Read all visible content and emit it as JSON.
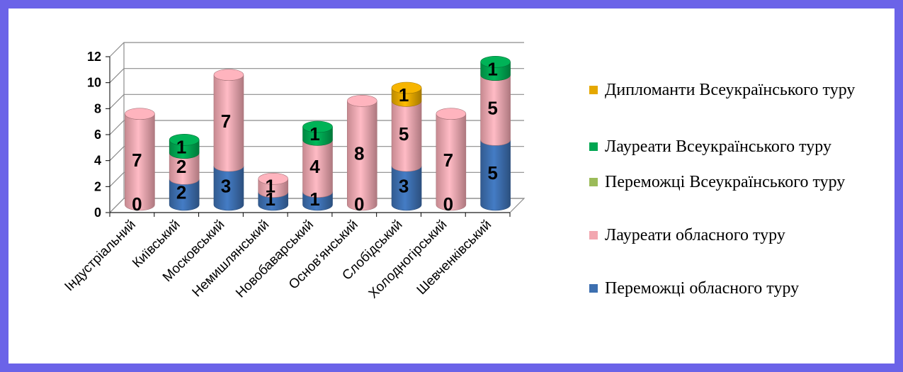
{
  "chart_data": {
    "type": "bar",
    "stacked": true,
    "style": "3d-cylinder",
    "categories": [
      "Індустріальний",
      "Київський",
      "Московський",
      "Немишлянський",
      "Новобаварський",
      "Основ'янський",
      "Слобідський",
      "Холодногірський",
      "Шевченківський"
    ],
    "series": [
      {
        "name": "Переможці обласного туру",
        "color": "#3d6fb0",
        "values": [
          0,
          2,
          3,
          1,
          1,
          0,
          3,
          0,
          5
        ]
      },
      {
        "name": "Лауреати обласного  туру",
        "color": "#f2a7b0",
        "values": [
          7,
          2,
          7,
          1,
          4,
          8,
          5,
          7,
          5
        ]
      },
      {
        "name": "Переможці Всеукраїнського туру",
        "color": "#9bbb59",
        "values": [
          0,
          0,
          0,
          0,
          0,
          0,
          0,
          0,
          0
        ]
      },
      {
        "name": "Лауреати Всеукраїнського туру",
        "color": "#00a651",
        "values": [
          0,
          1,
          0,
          0,
          1,
          0,
          0,
          0,
          1
        ]
      },
      {
        "name": "Дипломанти Всеукраїнського туру",
        "color": "#e5a800",
        "values": [
          0,
          0,
          0,
          0,
          0,
          0,
          1,
          0,
          0
        ]
      }
    ],
    "data_labels": [
      {
        "category": 0,
        "series": 0,
        "text": "0"
      },
      {
        "category": 0,
        "series": 1,
        "text": "7"
      },
      {
        "category": 1,
        "series": 0,
        "text": "2"
      },
      {
        "category": 1,
        "series": 1,
        "text": "2"
      },
      {
        "category": 1,
        "series": 3,
        "text": "1"
      },
      {
        "category": 2,
        "series": 0,
        "text": "3"
      },
      {
        "category": 2,
        "series": 1,
        "text": "7"
      },
      {
        "category": 3,
        "series": 0,
        "text": "1"
      },
      {
        "category": 3,
        "series": 1,
        "text": "1"
      },
      {
        "category": 4,
        "series": 0,
        "text": "1"
      },
      {
        "category": 4,
        "series": 1,
        "text": "4"
      },
      {
        "category": 4,
        "series": 3,
        "text": "1"
      },
      {
        "category": 5,
        "series": 0,
        "text": "0"
      },
      {
        "category": 5,
        "series": 1,
        "text": "8"
      },
      {
        "category": 6,
        "series": 0,
        "text": "3"
      },
      {
        "category": 6,
        "series": 1,
        "text": "5"
      },
      {
        "category": 6,
        "series": 4,
        "text": "1"
      },
      {
        "category": 7,
        "series": 0,
        "text": "0"
      },
      {
        "category": 7,
        "series": 1,
        "text": "7"
      },
      {
        "category": 8,
        "series": 0,
        "text": "5"
      },
      {
        "category": 8,
        "series": 1,
        "text": "5"
      },
      {
        "category": 8,
        "series": 3,
        "text": "1"
      }
    ],
    "ylim": [
      0,
      12
    ],
    "yticks": [
      "0",
      "2",
      "4",
      "6",
      "8",
      "10",
      "12"
    ],
    "grid": true,
    "legend_position": "right",
    "legend_order": [
      "Дипломанти Всеукраїнського туру",
      "Лауреати Всеукраїнського туру",
      "Переможці Всеукраїнського туру",
      "Лауреати обласного  туру",
      "Переможці обласного туру"
    ],
    "title": "",
    "xlabel": "",
    "ylabel": ""
  },
  "legend": {
    "items": [
      {
        "label": "Дипломанти Всеукраїнського туру",
        "color": "#e5a800"
      },
      {
        "label": "Лауреати Всеукраїнського туру",
        "color": "#00a651"
      },
      {
        "label": "Переможці Всеукраїнського туру",
        "color": "#9bbb59"
      },
      {
        "label": "Лауреати обласного  туру",
        "color": "#f2a7b0"
      },
      {
        "label": "Переможці обласного туру",
        "color": "#3d6fb0"
      }
    ]
  },
  "colors": {
    "frame": "#6b63e8",
    "gridline": "#8c8c8c"
  }
}
